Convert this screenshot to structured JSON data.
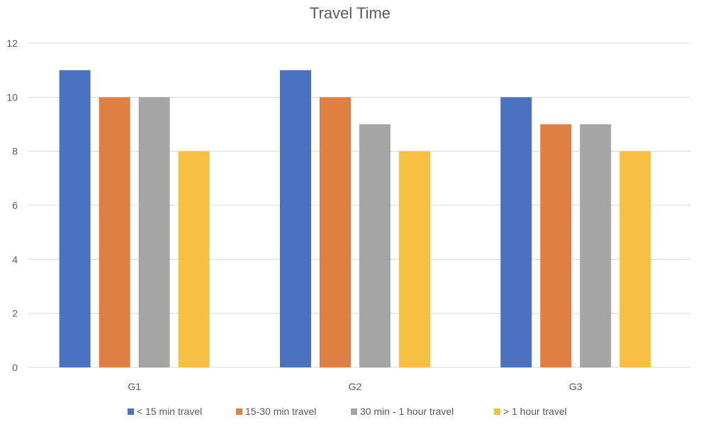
{
  "chart_data": {
    "type": "bar",
    "title": "Travel Time",
    "xlabel": "",
    "ylabel": "",
    "categories": [
      "G1",
      "G2",
      "G3"
    ],
    "ylim": [
      0,
      12
    ],
    "yticks": [
      0,
      2,
      4,
      6,
      8,
      10,
      12
    ],
    "grid": true,
    "legend_position": "bottom",
    "series": [
      {
        "name": "< 15 min travel",
        "color": "#4a72c1",
        "values": [
          11,
          11,
          10
        ]
      },
      {
        "name": "15-30 min travel",
        "color": "#e07f42",
        "values": [
          10,
          10,
          9
        ]
      },
      {
        "name": "30 min - 1 hour travel",
        "color": "#a5a5a5",
        "values": [
          10,
          9,
          9
        ]
      },
      {
        "name": "> 1 hour travel",
        "color": "#f6c143",
        "values": [
          8,
          8,
          8
        ]
      }
    ]
  }
}
